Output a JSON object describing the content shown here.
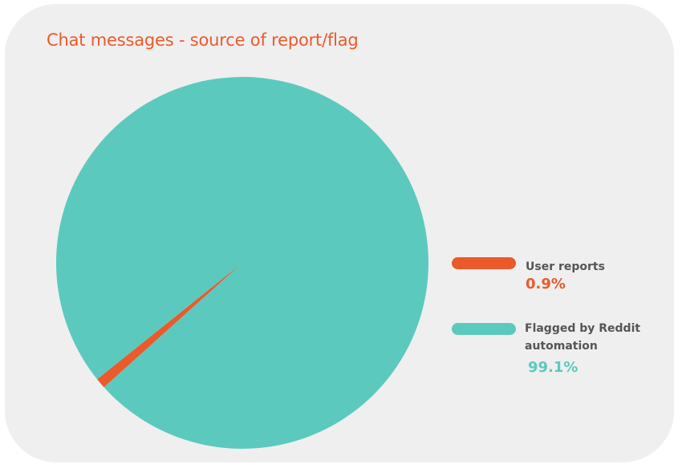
{
  "chart_data": {
    "type": "pie",
    "title": "Chat messages - source of report/flag",
    "legend_position": "right",
    "series": [
      {
        "name": "User reports",
        "value": 0.9,
        "value_label": "0.9%",
        "color": "#ea5a2a"
      },
      {
        "name": "Flagged by Reddit automation",
        "value": 99.1,
        "value_label": "99.1%",
        "color": "#5cc9be"
      }
    ]
  },
  "colors": {
    "background": "#efefef",
    "title": "#ea5a2a",
    "legend_label": "#555555"
  }
}
